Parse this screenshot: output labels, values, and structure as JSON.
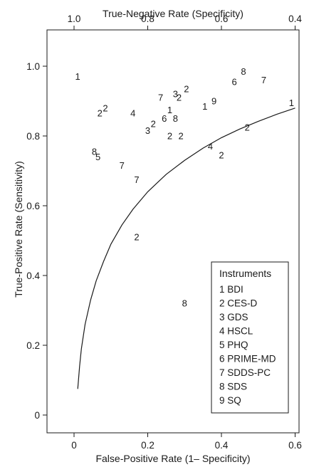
{
  "chart_data": {
    "type": "scatter",
    "title": "",
    "xlabel": "False-Positive Rate (1– Specificity)",
    "ylabel": "True-Positive Rate (Sensitivity)",
    "x2label": "True-Negative Rate (Specificity)",
    "xlim": [
      -0.05,
      0.6
    ],
    "ylim": [
      -0.05,
      1.05
    ],
    "x_ticks": [
      0,
      0.2,
      0.4,
      0.6
    ],
    "x_tick_labels": [
      "0",
      "0.2",
      "0.4",
      "0.6"
    ],
    "x2_ticks": [
      1.0,
      0.8,
      0.6,
      0.4
    ],
    "x2_tick_labels": [
      "1.0",
      "0.8",
      "0.6",
      "0.4"
    ],
    "y_ticks": [
      0,
      0.2,
      0.4,
      0.6,
      0.8,
      1.0
    ],
    "y_tick_labels": [
      "0",
      "0.2",
      "0.4",
      "0.6",
      "0.8",
      "1.0"
    ],
    "grid": false,
    "legend_position": "bottom-right",
    "legend": {
      "title": "Instruments",
      "entries": [
        "1 BDI",
        "2 CES-D",
        "3 GDS",
        "4 HSCL",
        "5 PHQ",
        "6 PRIME-MD",
        "7 SDDS-PC",
        "8 SDS",
        "9 SQ"
      ]
    },
    "points": [
      {
        "label": "1",
        "x": 0.01,
        "y": 0.97
      },
      {
        "label": "1",
        "x": 0.355,
        "y": 0.885
      },
      {
        "label": "1",
        "x": 0.26,
        "y": 0.875
      },
      {
        "label": "1",
        "x": 0.59,
        "y": 0.895
      },
      {
        "label": "2",
        "x": 0.085,
        "y": 0.88
      },
      {
        "label": "2",
        "x": 0.07,
        "y": 0.865
      },
      {
        "label": "2",
        "x": 0.215,
        "y": 0.835
      },
      {
        "label": "2",
        "x": 0.305,
        "y": 0.935
      },
      {
        "label": "2",
        "x": 0.285,
        "y": 0.91
      },
      {
        "label": "2",
        "x": 0.26,
        "y": 0.8
      },
      {
        "label": "2",
        "x": 0.29,
        "y": 0.8
      },
      {
        "label": "2",
        "x": 0.47,
        "y": 0.825
      },
      {
        "label": "2",
        "x": 0.4,
        "y": 0.745
      },
      {
        "label": "2",
        "x": 0.17,
        "y": 0.51
      },
      {
        "label": "3",
        "x": 0.275,
        "y": 0.92
      },
      {
        "label": "3",
        "x": 0.2,
        "y": 0.815
      },
      {
        "label": "4",
        "x": 0.16,
        "y": 0.865
      },
      {
        "label": "4",
        "x": 0.37,
        "y": 0.77
      },
      {
        "label": "5",
        "x": 0.065,
        "y": 0.74
      },
      {
        "label": "6",
        "x": 0.435,
        "y": 0.955
      },
      {
        "label": "6",
        "x": 0.245,
        "y": 0.85
      },
      {
        "label": "7",
        "x": 0.235,
        "y": 0.91
      },
      {
        "label": "7",
        "x": 0.515,
        "y": 0.96
      },
      {
        "label": "7",
        "x": 0.13,
        "y": 0.715
      },
      {
        "label": "7",
        "x": 0.17,
        "y": 0.675
      },
      {
        "label": "8",
        "x": 0.46,
        "y": 0.985
      },
      {
        "label": "8",
        "x": 0.055,
        "y": 0.755
      },
      {
        "label": "8",
        "x": 0.275,
        "y": 0.85
      },
      {
        "label": "8",
        "x": 0.3,
        "y": 0.32
      },
      {
        "label": "9",
        "x": 0.38,
        "y": 0.9
      }
    ],
    "curve": {
      "type": "roc",
      "x": [
        0.01,
        0.015,
        0.02,
        0.03,
        0.045,
        0.06,
        0.08,
        0.1,
        0.13,
        0.16,
        0.2,
        0.25,
        0.3,
        0.35,
        0.4,
        0.45,
        0.5,
        0.55,
        0.6
      ],
      "y": [
        0.075,
        0.14,
        0.19,
        0.26,
        0.33,
        0.385,
        0.44,
        0.49,
        0.545,
        0.59,
        0.64,
        0.69,
        0.73,
        0.765,
        0.795,
        0.82,
        0.842,
        0.862,
        0.88
      ]
    }
  }
}
